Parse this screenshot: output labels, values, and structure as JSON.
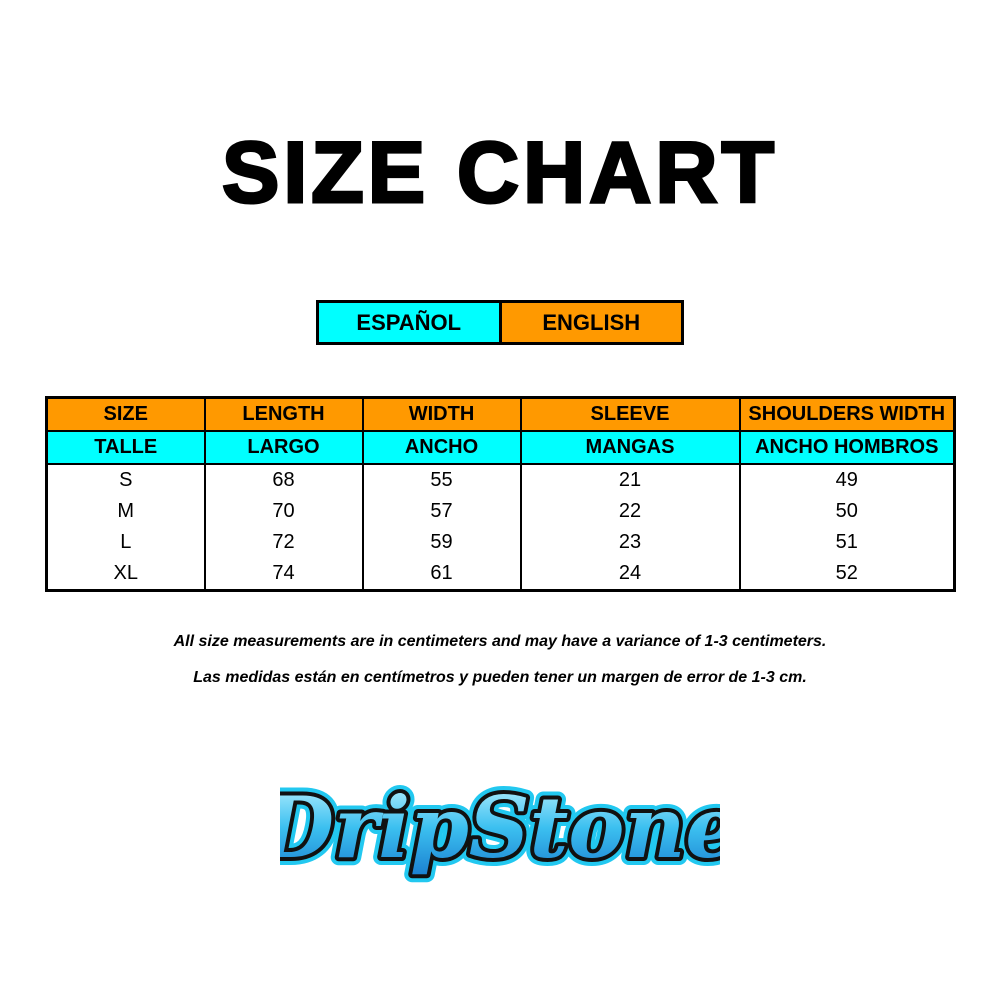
{
  "title": "SIZE CHART",
  "legend": {
    "spanish": "ESPAÑOL",
    "english": "ENGLISH",
    "spanish_color": "#00ffff",
    "english_color": "#ff9900"
  },
  "table": {
    "headers_en": [
      "SIZE",
      "LENGTH",
      "WIDTH",
      "SLEEVE",
      "SHOULDERS WIDTH"
    ],
    "headers_es": [
      "TALLE",
      "LARGO",
      "ANCHO",
      "MANGAS",
      "ANCHO HOMBROS"
    ],
    "rows": [
      [
        "S",
        "68",
        "55",
        "21",
        "49"
      ],
      [
        "M",
        "70",
        "57",
        "22",
        "50"
      ],
      [
        "L",
        "72",
        "59",
        "23",
        "51"
      ],
      [
        "XL",
        "74",
        "61",
        "24",
        "52"
      ]
    ]
  },
  "notes": {
    "english": "All size measurements are in centimeters and may have a variance of 1-3 centimeters.",
    "spanish": "Las medidas están en centímetros y pueden tener un margen de error de 1-3 cm."
  },
  "logo": {
    "text": "DripStone"
  }
}
